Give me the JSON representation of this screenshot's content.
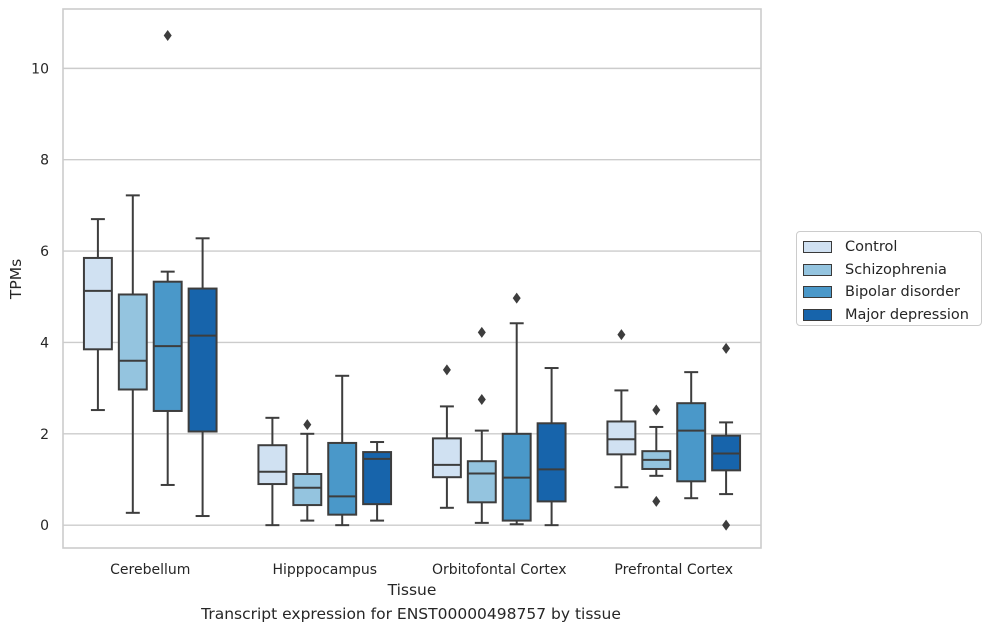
{
  "chart_data": {
    "type": "boxplot",
    "caption": "Transcript expression for ENST00000498757 by tissue",
    "xlabel": "Tissue",
    "ylabel": "TPMs",
    "ylim": [
      -0.5,
      11.3
    ],
    "yticks": [
      0,
      2,
      4,
      6,
      8,
      10
    ],
    "grid": true,
    "legend_position": "right",
    "categories": [
      "Cerebellum",
      "Hipppocampus",
      "Orbitofontal Cortex",
      "Prefrontal Cortex"
    ],
    "series": [
      {
        "name": "Control",
        "color": "#d0e1f2",
        "boxes": [
          {
            "whislo": 2.52,
            "q1": 3.85,
            "med": 5.13,
            "q3": 5.85,
            "whishi": 6.7,
            "fliers": []
          },
          {
            "whislo": 0.0,
            "q1": 0.9,
            "med": 1.17,
            "q3": 1.75,
            "whishi": 2.35,
            "fliers": []
          },
          {
            "whislo": 0.38,
            "q1": 1.05,
            "med": 1.32,
            "q3": 1.9,
            "whishi": 2.6,
            "fliers": [
              3.4
            ]
          },
          {
            "whislo": 0.83,
            "q1": 1.55,
            "med": 1.88,
            "q3": 2.27,
            "whishi": 2.95,
            "fliers": [
              4.17
            ]
          }
        ]
      },
      {
        "name": "Schizophrenia",
        "color": "#94c4df",
        "boxes": [
          {
            "whislo": 0.27,
            "q1": 2.97,
            "med": 3.6,
            "q3": 5.05,
            "whishi": 7.22,
            "fliers": []
          },
          {
            "whislo": 0.1,
            "q1": 0.44,
            "med": 0.82,
            "q3": 1.12,
            "whishi": 2.0,
            "fliers": [
              2.2
            ]
          },
          {
            "whislo": 0.05,
            "q1": 0.5,
            "med": 1.13,
            "q3": 1.4,
            "whishi": 2.07,
            "fliers": [
              2.75,
              4.22
            ]
          },
          {
            "whislo": 1.08,
            "q1": 1.23,
            "med": 1.43,
            "q3": 1.62,
            "whishi": 2.15,
            "fliers": [
              0.52,
              2.52
            ]
          }
        ]
      },
      {
        "name": "Bipolar disorder",
        "color": "#4a98c9",
        "boxes": [
          {
            "whislo": 0.88,
            "q1": 2.5,
            "med": 3.92,
            "q3": 5.33,
            "whishi": 5.55,
            "fliers": [
              10.72
            ]
          },
          {
            "whislo": 0.0,
            "q1": 0.23,
            "med": 0.63,
            "q3": 1.8,
            "whishi": 3.27,
            "fliers": []
          },
          {
            "whislo": 0.02,
            "q1": 0.1,
            "med": 1.04,
            "q3": 2.0,
            "whishi": 4.42,
            "fliers": [
              4.97
            ]
          },
          {
            "whislo": 0.59,
            "q1": 0.96,
            "med": 2.07,
            "q3": 2.67,
            "whishi": 3.35,
            "fliers": []
          }
        ]
      },
      {
        "name": "Major depression",
        "color": "#1764ab",
        "boxes": [
          {
            "whislo": 0.2,
            "q1": 2.05,
            "med": 4.15,
            "q3": 5.18,
            "whishi": 6.28,
            "fliers": []
          },
          {
            "whislo": 0.1,
            "q1": 0.46,
            "med": 1.45,
            "q3": 1.6,
            "whishi": 1.82,
            "fliers": []
          },
          {
            "whislo": 0.0,
            "q1": 0.52,
            "med": 1.22,
            "q3": 2.23,
            "whishi": 3.44,
            "fliers": []
          },
          {
            "whislo": 0.68,
            "q1": 1.2,
            "med": 1.57,
            "q3": 1.96,
            "whishi": 2.25,
            "fliers": [
              3.87,
              0.0
            ]
          }
        ]
      }
    ]
  }
}
